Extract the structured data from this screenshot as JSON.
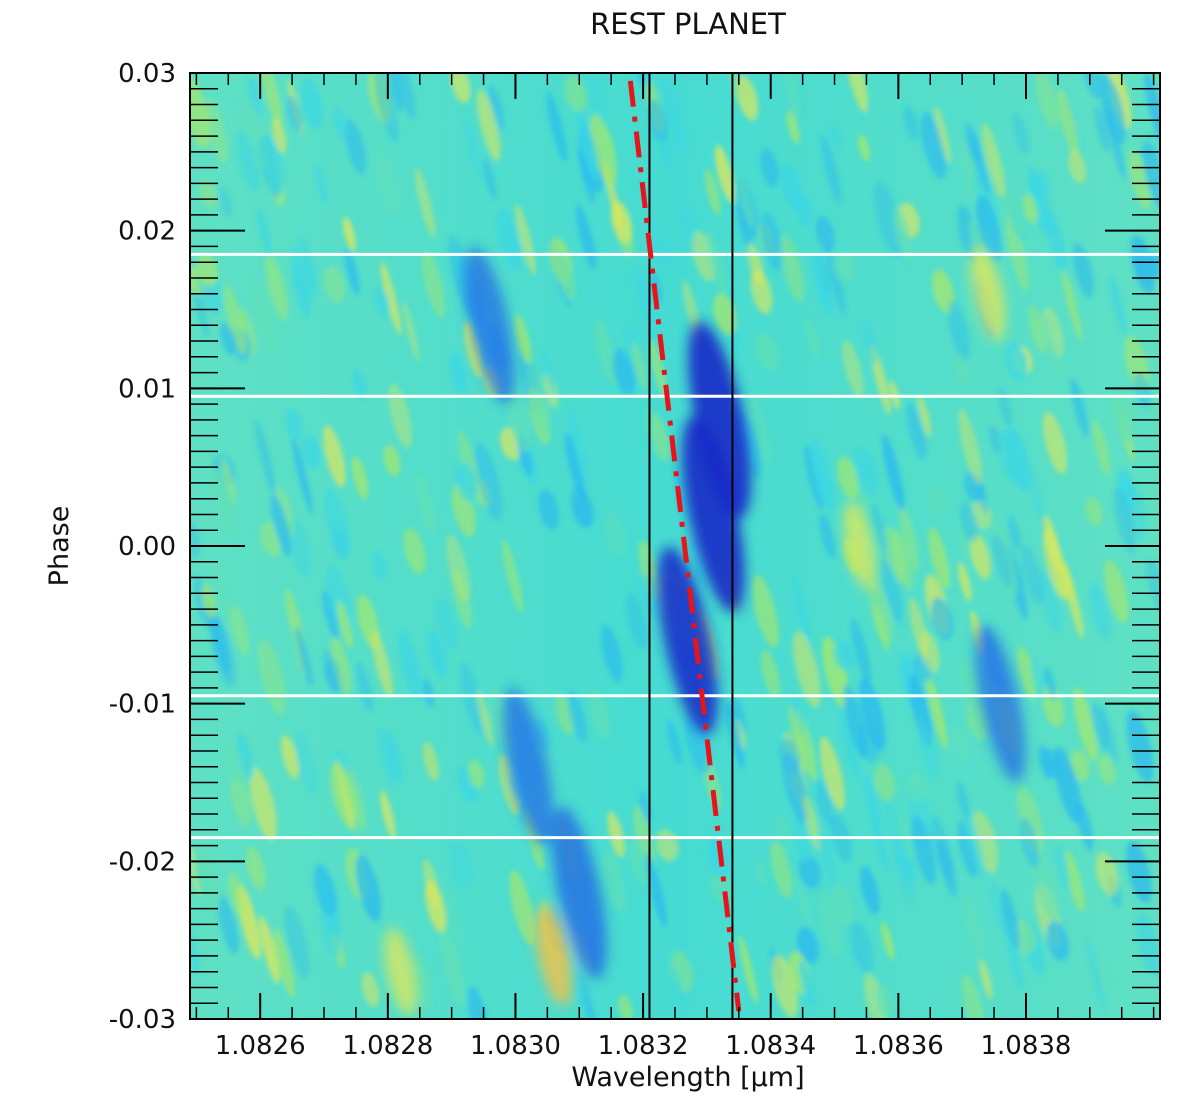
{
  "chart_data": {
    "type": "heatmap",
    "title": "REST PLANET",
    "xlabel": "Wavelength [μm]",
    "ylabel": "Phase",
    "xlim": [
      1.08249,
      1.08401
    ],
    "ylim": [
      -0.03,
      0.03
    ],
    "x_ticks": [
      1.0826,
      1.0828,
      1.083,
      1.0832,
      1.0834,
      1.0836,
      1.0838
    ],
    "x_tick_labels": [
      "1.0826",
      "1.0828",
      "1.0830",
      "1.0832",
      "1.0834",
      "1.0836",
      "1.0838"
    ],
    "y_ticks": [
      0.03,
      0.02,
      0.01,
      0.0,
      -0.01,
      -0.02,
      -0.03
    ],
    "y_tick_labels": [
      "0.03",
      "0.02",
      "0.01",
      "0.00",
      "-0.01",
      "-0.02",
      "-0.03"
    ],
    "vertical_lines": [
      1.08321,
      1.08334
    ],
    "horizontal_white_lines": [
      0.0185,
      0.0095,
      -0.0095,
      -0.0185
    ],
    "model_track": {
      "style": "dash-dot",
      "color": "#e8141b",
      "points": [
        [
          1.08318,
          0.0295
        ],
        [
          1.08335,
          -0.0295
        ]
      ]
    },
    "absorption_features": [
      {
        "x": 1.08332,
        "y": 0.008,
        "strength": 1.0
      },
      {
        "x": 1.08331,
        "y": 0.002,
        "strength": 1.0
      },
      {
        "x": 1.08327,
        "y": -0.006,
        "strength": 0.9
      },
      {
        "x": 1.0831,
        "y": -0.022,
        "strength": 0.7
      },
      {
        "x": 1.08302,
        "y": -0.014,
        "strength": 0.5
      },
      {
        "x": 1.08296,
        "y": 0.014,
        "strength": 0.5
      },
      {
        "x": 1.08376,
        "y": -0.01,
        "strength": 0.5
      }
    ],
    "emission_features": [
      {
        "x": 1.08374,
        "y": 0.016,
        "strength": 0.6
      },
      {
        "x": 1.08306,
        "y": -0.026,
        "strength": 0.7
      },
      {
        "x": 1.08282,
        "y": -0.027,
        "strength": 0.5
      },
      {
        "x": 1.08354,
        "y": 0.0,
        "strength": 0.5
      }
    ],
    "colormap": [
      "#1528c8",
      "#1f6ae6",
      "#29b9f0",
      "#3ad6e6",
      "#63e0b4",
      "#a8e86a",
      "#e2e85a",
      "#f2c24a"
    ]
  }
}
